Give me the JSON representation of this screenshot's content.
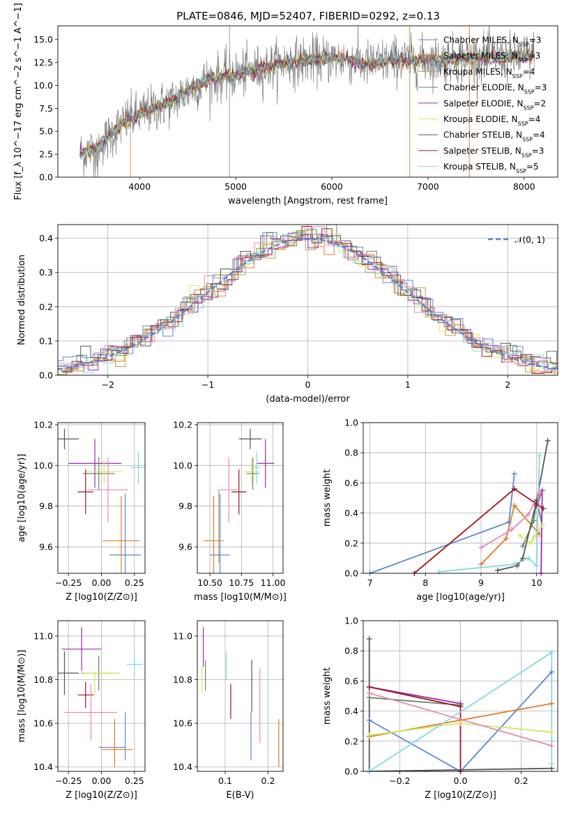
{
  "title": "PLATE=0846, MJD=52407, FIBERID=0292, z=0.13",
  "colors": {
    "Chabrier MILES": "#5b86d6",
    "Salpeter MILES": "#e07b27",
    "Kroupa MILES": "#b9a04a",
    "Chabrier ELODIE": "#5f8a63",
    "Salpeter ELODIE": "#9b2bb5",
    "Kroupa ELODIE": "#d4e85a",
    "Chabrier STELIB": "#555555",
    "Salpeter STELIB": "#a01419",
    "Kroupa STELIB": "#83d8e0",
    "normal": "#5b86d6",
    "pink": "#e887b8"
  },
  "chart_data": [
    {
      "id": "spectrum",
      "type": "line",
      "title": "PLATE=0846, MJD=52407, FIBERID=0292, z=0.13",
      "xlabel": "wavelength [Angstrom, rest frame]",
      "ylabel": "Flux [f_λ 10^−17 erg cm^−2 s^−1 A^−1]",
      "xlim": [
        3150,
        8350
      ],
      "ylim": [
        0,
        16.5
      ],
      "xticks": [
        4000,
        5000,
        6000,
        7000,
        8000
      ],
      "yticks": [
        0.0,
        2.5,
        5.0,
        7.5,
        10.0,
        12.5,
        15.0
      ],
      "grid": false,
      "legend": [
        {
          "label": "Chabrier MILES, N_SSP=3"
        },
        {
          "label": "Salpeter MILES, N_SSP=3"
        },
        {
          "label": "Kroupa MILES, N_SSP=4"
        },
        {
          "label": "Chabrier ELODIE, N_SSP=3"
        },
        {
          "label": "Salpeter ELODIE, N_SSP=2"
        },
        {
          "label": "Kroupa ELODIE, N_SSP=4"
        },
        {
          "label": "Chabrier STELIB, N_SSP=4"
        },
        {
          "label": "Salpeter STELIB, N_SSP=3"
        },
        {
          "label": "Kroupa STELIB, N_SSP=5"
        }
      ],
      "legend_position": "top-right",
      "continuum": [
        [
          3380,
          2.6
        ],
        [
          3500,
          3.0
        ],
        [
          3600,
          3.6
        ],
        [
          3700,
          4.6
        ],
        [
          3800,
          5.6
        ],
        [
          3900,
          6.4
        ],
        [
          4000,
          6.8
        ],
        [
          4100,
          7.3
        ],
        [
          4200,
          7.7
        ],
        [
          4300,
          8.1
        ],
        [
          4400,
          8.7
        ],
        [
          4500,
          9.4
        ],
        [
          4600,
          10.0
        ],
        [
          4700,
          10.5
        ],
        [
          4800,
          10.9
        ],
        [
          4900,
          11.0
        ],
        [
          5000,
          11.2
        ],
        [
          5100,
          11.4
        ],
        [
          5200,
          11.6
        ],
        [
          5300,
          11.9
        ],
        [
          5400,
          12.2
        ],
        [
          5500,
          12.5
        ],
        [
          5600,
          12.6
        ],
        [
          5700,
          12.7
        ],
        [
          5800,
          12.8
        ],
        [
          5900,
          12.8
        ],
        [
          6000,
          12.9
        ],
        [
          6100,
          12.9
        ],
        [
          6200,
          12.8
        ],
        [
          6300,
          12.4
        ],
        [
          6400,
          12.3
        ],
        [
          6500,
          12.5
        ],
        [
          6600,
          12.7
        ],
        [
          6700,
          12.9
        ],
        [
          6800,
          12.6
        ],
        [
          6900,
          12.7
        ],
        [
          7000,
          12.8
        ],
        [
          7100,
          12.7
        ],
        [
          7200,
          12.8
        ],
        [
          7300,
          12.9
        ],
        [
          7400,
          13.0
        ],
        [
          7500,
          13.1
        ],
        [
          7600,
          13.0
        ],
        [
          7700,
          13.1
        ],
        [
          7800,
          13.0
        ],
        [
          7900,
          13.1
        ],
        [
          8000,
          13.2
        ],
        [
          8100,
          13.4
        ]
      ]
    },
    {
      "id": "residuals",
      "type": "line",
      "xlabel": "(data-model)/error",
      "ylabel": "Normed distribution",
      "xlim": [
        -2.5,
        2.5
      ],
      "ylim": [
        0,
        0.44
      ],
      "xticks": [
        -2,
        -1,
        0,
        1,
        2
      ],
      "yticks": [
        0.0,
        0.1,
        0.2,
        0.3,
        0.4
      ],
      "grid": true,
      "legend": [
        {
          "label": "𝒩(0, 1)"
        }
      ],
      "legend_position": "top-right",
      "normal_curve": {
        "mean": 0,
        "sigma": 1
      }
    },
    {
      "id": "age_vs_Z",
      "type": "scatter",
      "xlabel": "Z [log10(Z/Z⊙)]",
      "ylabel": "age  [log10(age/yr)]",
      "xlim": [
        -0.33,
        0.33
      ],
      "ylim": [
        9.47,
        10.21
      ],
      "xticks": [
        -0.25,
        0.0,
        0.25
      ],
      "yticks": [
        9.6,
        9.8,
        10.0,
        10.2
      ],
      "grid": true,
      "points": [
        {
          "color": "Chabrier MILES",
          "x": 0.18,
          "y": 9.56,
          "xerr": 0.12,
          "yerr": 0.3
        },
        {
          "color": "Salpeter MILES",
          "x": 0.15,
          "y": 9.63,
          "xerr": 0.14,
          "yerr": 0.22
        },
        {
          "color": "Chabrier ELODIE",
          "x": -0.02,
          "y": 9.96,
          "xerr": 0.12,
          "yerr": 0.08
        },
        {
          "color": "Salpeter ELODIE",
          "x": -0.05,
          "y": 10.01,
          "xerr": 0.2,
          "yerr": 0.12
        },
        {
          "color": "Kroupa ELODIE",
          "x": 0.02,
          "y": 9.97,
          "xerr": 0.14,
          "yerr": 0.06
        },
        {
          "color": "Chabrier STELIB",
          "x": -0.28,
          "y": 10.13,
          "xerr": 0.11,
          "yerr": 0.05
        },
        {
          "color": "Salpeter STELIB",
          "x": -0.12,
          "y": 9.87,
          "xerr": 0.06,
          "yerr": 0.11
        },
        {
          "color": "Kroupa STELIB",
          "x": 0.28,
          "y": 9.99,
          "xerr": 0.06,
          "yerr": 0.08
        },
        {
          "color": "pink",
          "x": 0.05,
          "y": 9.88,
          "xerr": 0.15,
          "yerr": 0.16
        }
      ]
    },
    {
      "id": "age_vs_mass",
      "type": "scatter",
      "xlabel": "mass [log10(M/M⊙)]",
      "ylabel": "",
      "xlim": [
        10.4,
        11.08
      ],
      "ylim": [
        9.47,
        10.21
      ],
      "xticks": [
        10.5,
        10.75,
        11.0
      ],
      "yticks": [
        9.6,
        9.8,
        10.0,
        10.2
      ],
      "grid": true,
      "points": [
        {
          "color": "Chabrier MILES",
          "x": 10.58,
          "y": 9.56,
          "xerr": 0.08,
          "yerr": 0.3
        },
        {
          "color": "Salpeter MILES",
          "x": 10.53,
          "y": 9.63,
          "xerr": 0.08,
          "yerr": 0.22
        },
        {
          "color": "Chabrier ELODIE",
          "x": 10.84,
          "y": 9.96,
          "xerr": 0.05,
          "yerr": 0.08
        },
        {
          "color": "Salpeter ELODIE",
          "x": 10.94,
          "y": 10.01,
          "xerr": 0.07,
          "yerr": 0.12
        },
        {
          "color": "Kroupa ELODIE",
          "x": 10.83,
          "y": 9.97,
          "xerr": 0.06,
          "yerr": 0.06
        },
        {
          "color": "Chabrier STELIB",
          "x": 10.82,
          "y": 10.13,
          "xerr": 0.09,
          "yerr": 0.05
        },
        {
          "color": "Salpeter STELIB",
          "x": 10.73,
          "y": 9.87,
          "xerr": 0.06,
          "yerr": 0.11
        },
        {
          "color": "Kroupa STELIB",
          "x": 10.87,
          "y": 9.99,
          "xerr": 0.03,
          "yerr": 0.08
        },
        {
          "color": "pink",
          "x": 10.65,
          "y": 9.88,
          "xerr": 0.08,
          "yerr": 0.16
        },
        {
          "color": "Kroupa MILES",
          "x": 10.57,
          "y": 9.7,
          "xerr": 0.0,
          "yerr": 0.18
        }
      ]
    },
    {
      "id": "weight_vs_age",
      "type": "line",
      "xlabel": "age  [log10(age/yr)]",
      "ylabel": "mass weight",
      "xlim": [
        6.88,
        10.38
      ],
      "ylim": [
        0,
        1.0
      ],
      "xticks": [
        7,
        8,
        9,
        10
      ],
      "yticks": [
        0.0,
        0.2,
        0.4,
        0.6,
        0.8,
        1.0
      ],
      "grid": true,
      "series": [
        {
          "color": "Chabrier MILES",
          "x": [
            7.0,
            9.5,
            9.6
          ],
          "y": [
            0.0,
            0.34,
            0.66
          ]
        },
        {
          "color": "Salpeter MILES",
          "x": [
            9.0,
            9.45,
            9.6,
            10.05
          ],
          "y": [
            0.06,
            0.23,
            0.45,
            0.26
          ]
        },
        {
          "color": "Chabrier ELODIE",
          "x": [
            9.75,
            9.95,
            10.0,
            10.1
          ],
          "y": [
            0.18,
            0.35,
            0.49,
            0.32
          ]
        },
        {
          "color": "Salpeter ELODIE",
          "x": [
            10.0,
            10.1,
            10.08
          ],
          "y": [
            0.45,
            0.55,
            0.0
          ]
        },
        {
          "color": "Kroupa ELODIE",
          "x": [
            9.7,
            9.9,
            9.95,
            10.1
          ],
          "y": [
            0.25,
            0.2,
            0.24,
            0.32
          ]
        },
        {
          "color": "Chabrier STELIB",
          "x": [
            9.3,
            9.65,
            9.75,
            10.0,
            10.2
          ],
          "y": [
            0.02,
            0.05,
            0.1,
            0.48,
            0.88
          ]
        },
        {
          "color": "Salpeter STELIB",
          "x": [
            7.8,
            9.6,
            10.0,
            10.12
          ],
          "y": [
            0.0,
            0.56,
            0.46,
            0.43
          ]
        },
        {
          "color": "Kroupa STELIB",
          "x": [
            8.25,
            9.6,
            9.85,
            10.0,
            10.05
          ],
          "y": [
            0.01,
            0.06,
            0.1,
            0.05,
            0.78
          ]
        },
        {
          "color": "pink",
          "x": [
            9.0,
            9.55,
            9.85,
            10.05
          ],
          "y": [
            0.17,
            0.29,
            0.39,
            0.53
          ]
        }
      ]
    },
    {
      "id": "mass_vs_Z",
      "type": "scatter",
      "xlabel": "Z [log10(Z/Z⊙)]",
      "ylabel": "mass [log10(M/M⊙)]",
      "xlim": [
        -0.33,
        0.33
      ],
      "ylim": [
        10.38,
        11.07
      ],
      "xticks": [
        -0.25,
        0.0,
        0.25
      ],
      "yticks": [
        10.4,
        10.6,
        10.8,
        11.0
      ],
      "grid": true,
      "points": [
        {
          "color": "Chabrier MILES",
          "x": 0.08,
          "y": 10.49,
          "xerr": 0.1,
          "yerr": 0.0
        },
        {
          "color": "Chabrier MILES",
          "x": 0.18,
          "y": 10.54,
          "xerr": 0.0,
          "yerr": 0.11
        },
        {
          "color": "Salpeter MILES",
          "x": 0.12,
          "y": 10.48,
          "xerr": 0.12,
          "yerr": 0.0
        },
        {
          "color": "Salpeter MILES",
          "x": 0.1,
          "y": 10.51,
          "xerr": 0.0,
          "yerr": 0.11
        },
        {
          "color": "Chabrier ELODIE",
          "x": -0.02,
          "y": 10.83,
          "xerr": 0.13,
          "yerr": 0.08
        },
        {
          "color": "Salpeter ELODIE",
          "x": -0.15,
          "y": 10.94,
          "xerr": 0.15,
          "yerr": 0.1
        },
        {
          "color": "Kroupa ELODIE",
          "x": 0.0,
          "y": 10.83,
          "xerr": 0.14,
          "yerr": 0.0
        },
        {
          "color": "Kroupa ELODIE",
          "x": -0.05,
          "y": 10.78,
          "xerr": 0.0,
          "yerr": 0.06
        },
        {
          "color": "Chabrier STELIB",
          "x": -0.28,
          "y": 10.83,
          "xerr": 0.11,
          "yerr": 0.1
        },
        {
          "color": "Salpeter STELIB",
          "x": -0.12,
          "y": 10.73,
          "xerr": 0.06,
          "yerr": 0.06
        },
        {
          "color": "Kroupa STELIB",
          "x": 0.25,
          "y": 10.87,
          "xerr": 0.06,
          "yerr": 0.05
        },
        {
          "color": "pink",
          "x": -0.08,
          "y": 10.65,
          "xerr": 0.2,
          "yerr": 0.13
        }
      ]
    },
    {
      "id": "mass_vs_EBV",
      "type": "scatter",
      "xlabel": "E(B-V)",
      "ylabel": "",
      "xlim": [
        0.035,
        0.235
      ],
      "ylim": [
        10.38,
        11.07
      ],
      "xticks": [
        0.1,
        0.2
      ],
      "yticks": [
        10.4,
        10.6,
        10.8,
        11.0
      ],
      "grid": true,
      "points": [
        {
          "color": "Salpeter ELODIE",
          "x": 0.049,
          "y": 10.95,
          "yerr": 0.09
        },
        {
          "color": "Kroupa ELODIE",
          "x": 0.046,
          "y": 10.8,
          "yerr": 0.06
        },
        {
          "color": "Chabrier ELODIE",
          "x": 0.054,
          "y": 10.82,
          "yerr": 0.07
        },
        {
          "color": "Kroupa STELIB",
          "x": 0.103,
          "y": 10.86,
          "yerr": 0.06
        },
        {
          "color": "Salpeter STELIB",
          "x": 0.113,
          "y": 10.7,
          "yerr": 0.08
        },
        {
          "color": "Chabrier MILES",
          "x": 0.16,
          "y": 10.54,
          "yerr": 0.11
        },
        {
          "color": "Chabrier STELIB",
          "x": 0.162,
          "y": 10.77,
          "yerr": 0.12
        },
        {
          "color": "pink",
          "x": 0.181,
          "y": 10.68,
          "yerr": 0.17
        },
        {
          "color": "Salpeter MILES",
          "x": 0.225,
          "y": 10.51,
          "yerr": 0.11
        }
      ]
    },
    {
      "id": "weight_vs_Z",
      "type": "line",
      "xlabel": "Z [log10(Z/Z⊙)]",
      "ylabel": "mass weight",
      "xlim": [
        -0.32,
        0.32
      ],
      "ylim": [
        0,
        1.0
      ],
      "xticks": [
        -0.2,
        0.0,
        0.2
      ],
      "yticks": [
        0.0,
        0.2,
        0.4,
        0.6,
        0.8,
        1.0
      ],
      "grid": true,
      "series": [
        {
          "color": "Chabrier MILES",
          "x": [
            -0.3,
            0.0,
            0.3
          ],
          "y": [
            0.34,
            0.0,
            0.66
          ]
        },
        {
          "color": "Salpeter MILES",
          "x": [
            -0.3,
            0.0,
            0.3
          ],
          "y": [
            0.23,
            0.34,
            0.45
          ]
        },
        {
          "color": "Chabrier ELODIE",
          "x": [
            -0.3,
            0.0
          ],
          "y": [
            0.49,
            0.44
          ]
        },
        {
          "color": "Salpeter ELODIE",
          "x": [
            -0.3,
            0.0
          ],
          "y": [
            0.56,
            0.45
          ]
        },
        {
          "color": "Kroupa ELODIE",
          "x": [
            -0.3,
            0.0,
            0.3
          ],
          "y": [
            0.24,
            0.32,
            0.26
          ]
        },
        {
          "color": "Chabrier STELIB",
          "x": [
            -0.3,
            -0.3,
            0.3
          ],
          "y": [
            0.88,
            0.0,
            0.02
          ]
        },
        {
          "color": "Salpeter STELIB",
          "x": [
            -0.3,
            0.0,
            0.0
          ],
          "y": [
            0.56,
            0.43,
            0.0
          ]
        },
        {
          "color": "Kroupa STELIB",
          "x": [
            -0.3,
            0.3,
            0.3
          ],
          "y": [
            0.0,
            0.79,
            0.05
          ]
        },
        {
          "color": "pink",
          "x": [
            -0.3,
            0.3
          ],
          "y": [
            0.52,
            0.17
          ]
        }
      ]
    }
  ]
}
